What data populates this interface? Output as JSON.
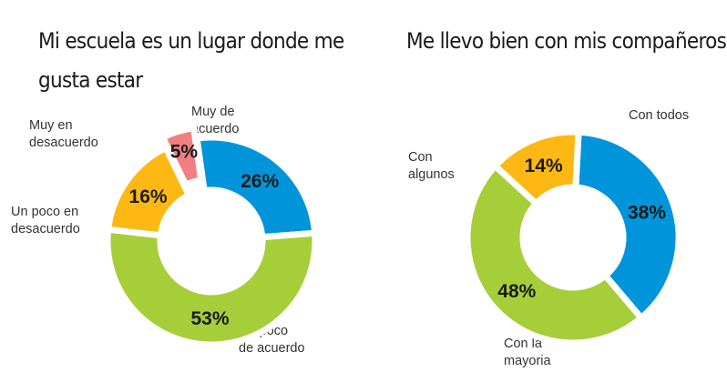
{
  "chart_data": [
    {
      "type": "pie",
      "title": "Mi escuela es un lugar  donde me gusta estar",
      "title_lines": [
        "Mi escuela es un lugar  donde me",
        "gusta estar"
      ],
      "slices": [
        {
          "label": "Muy de acuerdo",
          "label_lines": "Muy de\nacuerdo",
          "value": 26,
          "value_label": "26%",
          "color": "#0095DA"
        },
        {
          "label": "Un poco de acuerdo",
          "label_lines": "Un poco\nde acuerdo",
          "value": 53,
          "value_label": "53%",
          "color": "#A6CE39"
        },
        {
          "label": "Un poco en desacuerdo",
          "label_lines": "Un poco en\ndesacuerdo",
          "value": 16,
          "value_label": "16%",
          "color": "#FDB813"
        },
        {
          "label": "Muy en desacuerdo",
          "label_lines": "Muy en\ndesacuerdo",
          "value": 5,
          "value_label": "5%",
          "color": "#F08080"
        }
      ]
    },
    {
      "type": "pie",
      "title": "Me llevo bien con mis compañeros",
      "title_lines": [
        "Me llevo bien con mis compañeros"
      ],
      "slices": [
        {
          "label": "Con todos",
          "label_lines": "Con todos",
          "value": 38,
          "value_label": "38%",
          "color": "#0095DA"
        },
        {
          "label": "Con la mayoria",
          "label_lines": "Con la\nmayoria",
          "value": 48,
          "value_label": "48%",
          "color": "#A6CE39"
        },
        {
          "label": "Con algunos",
          "label_lines": "Con\nalgunos",
          "value": 14,
          "value_label": "14%",
          "color": "#FDB813"
        }
      ]
    }
  ]
}
